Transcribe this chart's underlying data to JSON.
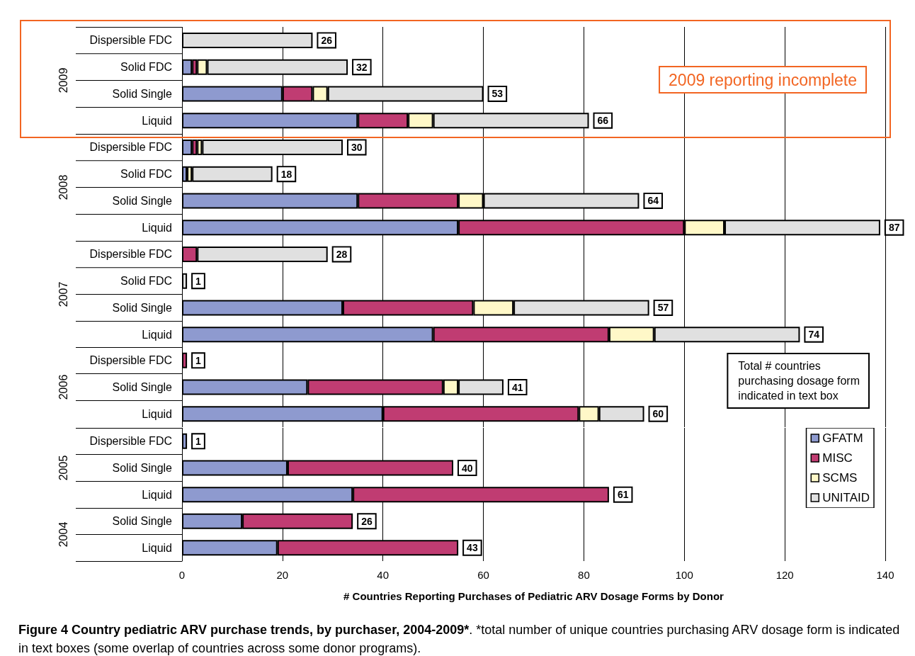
{
  "chart_data": [
    {
      "type": "bar",
      "orientation": "horizontal",
      "stacked": true,
      "ylabel": "2009",
      "categories": [
        "Dispersible FDC",
        "Solid FDC",
        "Solid Single",
        "Liquid"
      ],
      "xlim": [
        0,
        140
      ],
      "xticks": [
        0,
        20,
        40,
        60,
        80,
        100,
        120,
        140
      ],
      "grid": "x",
      "tick_labels": "y",
      "annotations": [
        "2009 reporting incomplete",
        {
          "text": "26",
          "x": 26,
          "y": "Dispersible FDC"
        },
        {
          "text": "32",
          "x": 33,
          "y": "Solid FDC"
        },
        {
          "text": "53",
          "x": 60,
          "y": "Solid Single"
        },
        {
          "text": "66",
          "x": 81,
          "y": "Liquid"
        }
      ],
      "series": [
        {
          "color": "#8e9acf",
          "values": [
            0,
            2,
            20,
            35
          ]
        },
        {
          "color": "#c03c72",
          "values": [
            0,
            1,
            6,
            10
          ]
        },
        {
          "color": "#fff8c8",
          "values": [
            0,
            2,
            3,
            5
          ]
        },
        {
          "color": "#e0e0e0",
          "values": [
            26,
            28,
            31,
            31
          ]
        }
      ]
    },
    {
      "type": "bar",
      "orientation": "horizontal",
      "stacked": true,
      "ylabel": "2008",
      "categories": [
        "Dispersible FDC",
        "Solid FDC",
        "Solid Single",
        "Liquid"
      ],
      "xlim": [
        0,
        140
      ],
      "xticks": [
        0,
        20,
        40,
        60,
        80,
        100,
        120,
        140
      ],
      "grid": "x",
      "tick_labels": "y",
      "annotations": [
        {
          "text": "30",
          "x": 32,
          "y": "Dispersible FDC"
        },
        {
          "text": "18",
          "x": 18,
          "y": "Solid FDC"
        },
        {
          "text": "64",
          "x": 91,
          "y": "Solid Single"
        },
        {
          "text": "87",
          "x": 139,
          "y": "Liquid"
        }
      ],
      "series": [
        {
          "color": "#8e9acf",
          "values": [
            2,
            1,
            35,
            55
          ]
        },
        {
          "color": "#c03c72",
          "values": [
            1,
            0,
            20,
            45
          ]
        },
        {
          "color": "#fff8c8",
          "values": [
            1,
            1,
            5,
            8
          ]
        },
        {
          "color": "#e0e0e0",
          "values": [
            28,
            16,
            31,
            31
          ]
        }
      ]
    },
    {
      "type": "bar",
      "orientation": "horizontal",
      "stacked": true,
      "ylabel": "2007",
      "categories": [
        "Dispersible FDC",
        "Solid FDC",
        "Solid Single",
        "Liquid"
      ],
      "xlim": [
        0,
        140
      ],
      "xticks": [
        0,
        20,
        40,
        60,
        80,
        100,
        120,
        140
      ],
      "grid": "x",
      "tick_labels": "y",
      "annotations": [
        {
          "text": "28",
          "x": 29,
          "y": "Dispersible FDC"
        },
        {
          "text": "1",
          "x": 1,
          "y": "Solid FDC"
        },
        {
          "text": "57",
          "x": 93,
          "y": "Solid Single"
        },
        {
          "text": "74",
          "x": 123,
          "y": "Liquid"
        }
      ],
      "series": [
        {
          "color": "#8e9acf",
          "values": [
            0,
            0,
            32,
            50
          ]
        },
        {
          "color": "#c03c72",
          "values": [
            3,
            0,
            26,
            35
          ]
        },
        {
          "color": "#fff8c8",
          "values": [
            0,
            0,
            8,
            9
          ]
        },
        {
          "color": "#e0e0e0",
          "values": [
            26,
            1,
            27,
            29
          ]
        }
      ]
    },
    {
      "type": "bar",
      "orientation": "horizontal",
      "stacked": true,
      "ylabel": "2006",
      "categories": [
        "Dispersible FDC",
        "Solid Single",
        "Liquid"
      ],
      "xlim": [
        0,
        140
      ],
      "xticks": [
        0,
        20,
        40,
        60,
        80,
        100,
        120,
        140
      ],
      "grid": "x",
      "tick_labels": "y",
      "annotations": [
        "Total # countries\npurchasing dosage form\nindicated in text box",
        {
          "text": "1",
          "x": 1,
          "y": "Dispersible FDC"
        },
        {
          "text": "41",
          "x": 64,
          "y": "Solid Single"
        },
        {
          "text": "60",
          "x": 92,
          "y": "Liquid"
        }
      ],
      "series": [
        {
          "color": "#8e9acf",
          "values": [
            0,
            25,
            40
          ]
        },
        {
          "color": "#c03c72",
          "values": [
            1,
            27,
            39
          ]
        },
        {
          "color": "#fff8c8",
          "values": [
            0,
            3,
            4
          ]
        },
        {
          "color": "#e0e0e0",
          "values": [
            0,
            9,
            9
          ]
        }
      ]
    },
    {
      "type": "bar",
      "orientation": "horizontal",
      "stacked": true,
      "ylabel": "2005",
      "categories": [
        "Dispersible FDC",
        "Solid Single",
        "Liquid"
      ],
      "xlim": [
        0,
        140
      ],
      "xticks": [
        0,
        20,
        40,
        60,
        80,
        100,
        120,
        140
      ],
      "grid": "x",
      "tick_labels": "y",
      "legend": "right",
      "annotations": [
        {
          "text": "1",
          "x": 1,
          "y": "Dispersible FDC"
        },
        {
          "text": "40",
          "x": 54,
          "y": "Solid Single"
        },
        {
          "text": "61",
          "x": 85,
          "y": "Liquid"
        }
      ],
      "series": [
        {
          "name": "GFATM",
          "color": "#8e9acf",
          "values": [
            1,
            21,
            34
          ]
        },
        {
          "name": "MISC",
          "color": "#c03c72",
          "values": [
            0,
            33,
            51
          ]
        },
        {
          "name": "SCMS",
          "color": "#fff8c8",
          "values": [
            0,
            0,
            0
          ]
        },
        {
          "name": "UNITAID",
          "color": "#e0e0e0",
          "values": [
            0,
            0,
            0
          ]
        }
      ]
    },
    {
      "type": "bar",
      "orientation": "horizontal",
      "stacked": true,
      "ylabel": "2004",
      "categories": [
        "Solid Single",
        "Liquid"
      ],
      "xlim": [
        0,
        140
      ],
      "xticks": [
        0,
        20,
        40,
        60,
        80,
        100,
        120,
        140
      ],
      "grid": "x",
      "xlabel": "# Countries Reporting Purchases of Pediatric ARV Dosage Forms by Donor",
      "title": "Figure 4 Country pediatric ARV purchase trends, by purchaser, 2004-2009*",
      "subtitle": ". *total number of unique countries purchasing ARV dosage form is indicated in text boxes (some overlap of countries across some donor programs).",
      "annotations": [
        {
          "text": "26",
          "x": 34,
          "y": "Solid Single"
        },
        {
          "text": "43",
          "x": 55,
          "y": "Liquid"
        }
      ],
      "series": [
        {
          "color": "#8e9acf",
          "values": [
            12,
            19
          ]
        },
        {
          "color": "#c03c72",
          "values": [
            22,
            36
          ]
        },
        {
          "color": "#fff8c8",
          "values": [
            0,
            0
          ]
        },
        {
          "color": "#e0e0e0",
          "values": [
            0,
            0
          ]
        }
      ]
    }
  ]
}
